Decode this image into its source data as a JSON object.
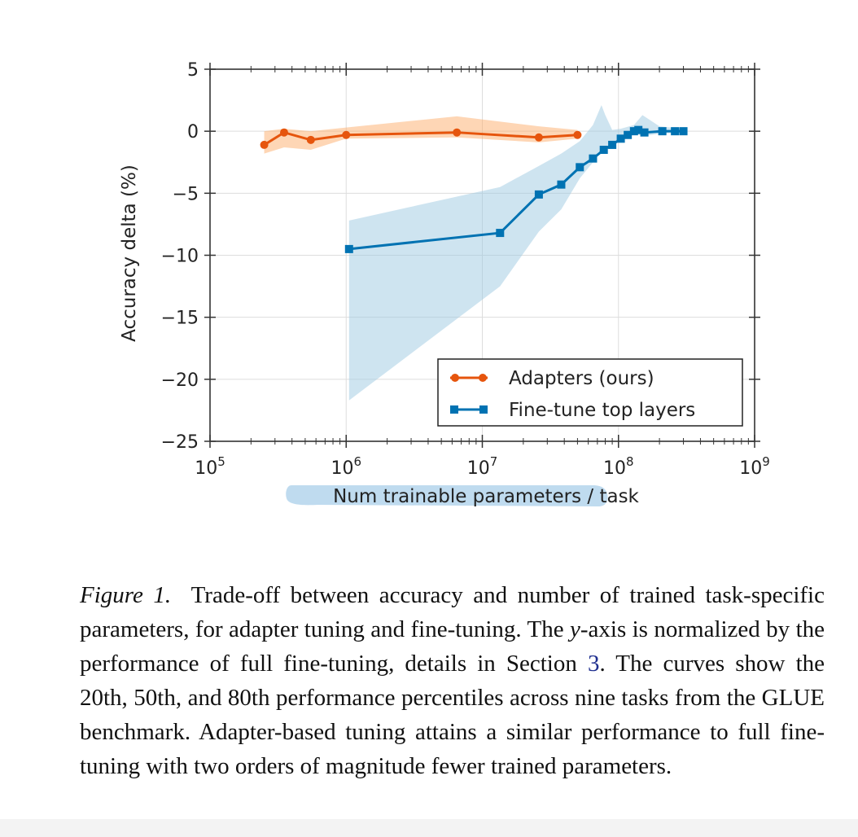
{
  "chart_data": {
    "type": "line",
    "x_scale": "log",
    "xlim": [
      100000,
      1000000000
    ],
    "ylim": [
      -25,
      5
    ],
    "xlabel": "Num trainable parameters / task",
    "xlabel_parts": {
      "highlighted": "Num trainable parameters",
      "rest": "/ task"
    },
    "ylabel": "Accuracy delta (%)",
    "x_ticks": [
      {
        "value": 100000,
        "base": "10",
        "exp": "5"
      },
      {
        "value": 1000000,
        "base": "10",
        "exp": "6"
      },
      {
        "value": 10000000,
        "base": "10",
        "exp": "7"
      },
      {
        "value": 100000000,
        "base": "10",
        "exp": "8"
      },
      {
        "value": 1000000000,
        "base": "10",
        "exp": "9"
      }
    ],
    "y_ticks": [
      {
        "value": 5,
        "label": "5"
      },
      {
        "value": 0,
        "label": "0"
      },
      {
        "value": -5,
        "label": "−5"
      },
      {
        "value": -10,
        "label": "−10"
      },
      {
        "value": -15,
        "label": "−15"
      },
      {
        "value": -20,
        "label": "−20"
      },
      {
        "value": -25,
        "label": "−25"
      }
    ],
    "grid": true,
    "legend_position": "bottom-right",
    "series": [
      {
        "name": "Adapters (ours)",
        "color": "#e6550d",
        "band_color": "#fdae6b",
        "marker": "circle",
        "x": [
          250000,
          350000,
          550000,
          1000000,
          6500000,
          26000000,
          50000000
        ],
        "y": [
          -1.1,
          -0.1,
          -0.7,
          -0.3,
          -0.1,
          -0.5,
          -0.3
        ],
        "band_x": [
          250000,
          350000,
          550000,
          1000000,
          6500000,
          26000000,
          50000000
        ],
        "band_low": [
          -1.8,
          -1.3,
          -1.5,
          -0.6,
          -0.5,
          -0.9,
          -0.6
        ],
        "band_high": [
          0.0,
          0.2,
          0.0,
          0.3,
          1.2,
          0.4,
          0.1
        ]
      },
      {
        "name": "Fine-tune top layers",
        "color": "#0072b2",
        "band_color": "#9ecae1",
        "marker": "square",
        "x": [
          1050000,
          13500000,
          26000000,
          38000000,
          52000000,
          65000000,
          78000000,
          90000000,
          104000000,
          117000000,
          130000000,
          140000000,
          155000000,
          210000000,
          260000000,
          300000000
        ],
        "y": [
          -9.5,
          -8.2,
          -5.1,
          -4.3,
          -2.9,
          -2.2,
          -1.5,
          -1.1,
          -0.6,
          -0.3,
          0.0,
          0.1,
          -0.1,
          0.0,
          0.0,
          0.0
        ],
        "band_x": [
          1050000,
          13500000,
          26000000,
          38000000,
          52000000,
          65000000,
          75000000,
          80000000,
          90000000,
          104000000,
          130000000,
          150000000,
          200000000,
          300000000
        ],
        "band_low": [
          -21.7,
          -12.5,
          -8.1,
          -6.3,
          -3.8,
          -2.5,
          -1.6,
          -1.4,
          -1.0,
          -0.5,
          -0.1,
          -0.4,
          -0.2,
          -0.1
        ],
        "band_high": [
          -7.2,
          -4.5,
          -2.8,
          -1.8,
          -0.8,
          0.5,
          2.1,
          1.3,
          0.1,
          0.2,
          0.5,
          1.3,
          0.4,
          0.2
        ]
      }
    ]
  },
  "caption": {
    "label": "Figure 1.",
    "before_ref": "Trade-off between accuracy and number of trained task-specific parameters, for adapter tuning and fine-tuning. The",
    "y_axis_var": "y",
    "after_var": "-axis is normalized by the performance of full fine-tuning, details in Section",
    "ref": "3",
    "after_ref": ". The curves show the 20th, 50th, and 80th performance percentiles across nine tasks from the GLUE benchmark. Adapter-based tuning attains a similar performance to full fine-tuning with two orders of magnitude fewer trained parameters."
  }
}
